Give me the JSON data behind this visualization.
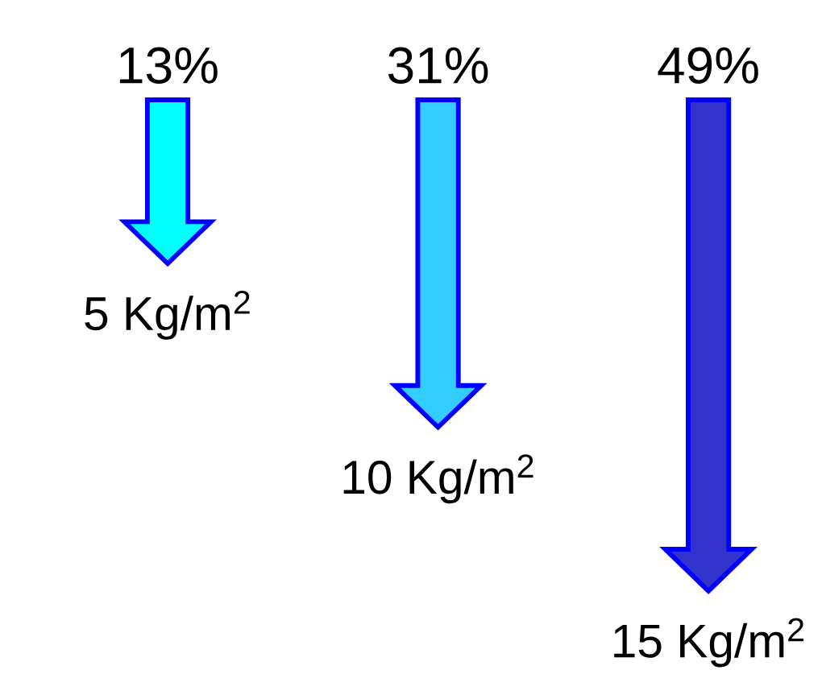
{
  "chart_data": {
    "type": "other",
    "categories": [
      "13%",
      "31%",
      "49%"
    ],
    "values": [
      5,
      10,
      15
    ],
    "value_labels": [
      "5 Kg/m$^{2}$",
      "10 Kg/m$^{2}$",
      "15 Kg/m$^{2}$"
    ],
    "colors": [
      "#00ffff",
      "#33ccff",
      "#3333cc"
    ]
  }
}
